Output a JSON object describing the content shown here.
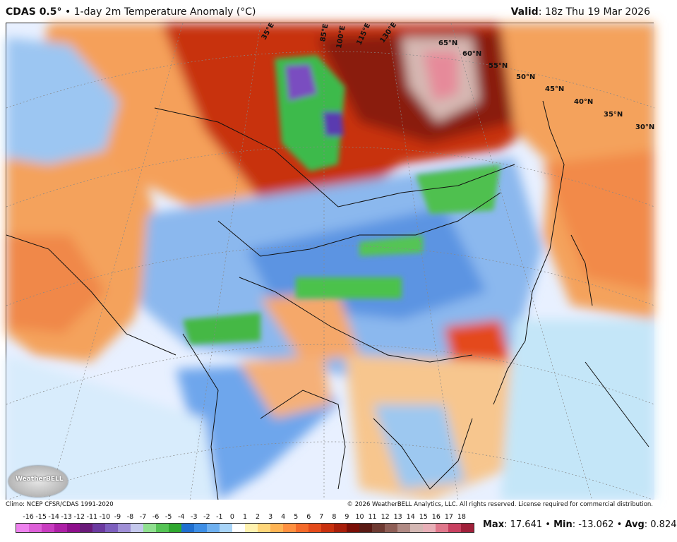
{
  "header": {
    "product": "CDAS 0.5°",
    "bullet": "•",
    "subtitle": "1-day 2m Temperature Anomaly (°C)",
    "valid_label": "Valid",
    "valid_time": ": 18z Thu 19 Mar 2026"
  },
  "map": {
    "lat_labels": [
      "65°N",
      "60°N",
      "55°N",
      "50°N",
      "45°N",
      "40°N",
      "35°N",
      "30°N"
    ],
    "lon_labels": [
      "35°E",
      "85°E",
      "100°E",
      "115°E",
      "130°E"
    ],
    "logo_text": "WeatherBELL"
  },
  "footer": {
    "climo": "Climo: NCEP CFSR/CDAS 1991-2020",
    "copyright": "© 2026 WeatherBELL Analytics, LLC. All rights reserved. License required for commercial distribution.",
    "max_label": "Max",
    "max_value": ": 17.641",
    "min_label": "Min",
    "min_value": ": -13.062",
    "avg_label": "Avg",
    "avg_value": ": 0.824",
    "sep": "•"
  },
  "scale": {
    "ticks": [
      "-16",
      "-15",
      "-14",
      "-13",
      "-12",
      "-11",
      "-10",
      "-9",
      "-8",
      "-7",
      "-6",
      "-5",
      "-4",
      "-3",
      "-2",
      "-1",
      "0",
      "1",
      "2",
      "3",
      "4",
      "5",
      "6",
      "7",
      "8",
      "9",
      "10",
      "11",
      "12",
      "13",
      "14",
      "15",
      "16",
      "17",
      "18"
    ],
    "colors": [
      "#ee82ee",
      "#dd5fd8",
      "#c83cc0",
      "#ad1fa6",
      "#8e0f8c",
      "#6a1a7a",
      "#6b3aa0",
      "#7d5fbe",
      "#9f8fd6",
      "#c4c8ec",
      "#8fe08f",
      "#55c455",
      "#2fa82f",
      "#1f6fd0",
      "#3d8ee6",
      "#6eb0f0",
      "#a8d4f8",
      "#ffffff",
      "#fff2b0",
      "#ffd67a",
      "#ffb454",
      "#ff9040",
      "#f46a2a",
      "#e44a1a",
      "#c8300e",
      "#a81e0a",
      "#7a0e06",
      "#5a1a14",
      "#6e3a32",
      "#8e5e56",
      "#b08a84",
      "#d4b8b4",
      "#e8b0b8",
      "#e0788c",
      "#c84060",
      "#a0203a"
    ]
  }
}
